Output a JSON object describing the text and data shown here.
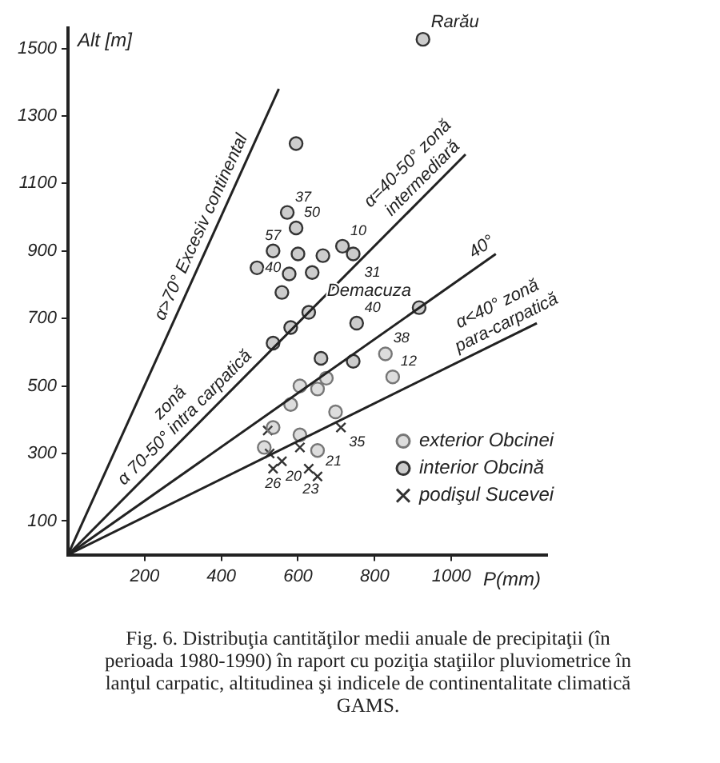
{
  "chart_data": {
    "type": "scatter",
    "title": "Fig. 6. Distribuţia cantităţilor medii anuale de precipitaţii (în perioada 1980-1990) în raport cu poziţia staţiilor pluviometrice în lanţul carpatic, altitudinea şi indicele de continentalitate climatică GAMS.",
    "xlabel": "P(mm)",
    "ylabel": "Alt [m]",
    "xlim": [
      0,
      1250
    ],
    "ylim": [
      0,
      1560
    ],
    "xticks": [
      200,
      400,
      600,
      800,
      1000
    ],
    "yticks": [
      100,
      300,
      500,
      700,
      900,
      1100,
      1300,
      1500
    ],
    "grid": false,
    "legend": "bottom right",
    "series": [
      {
        "type": "line",
        "marker": "none",
        "color": "#222222",
        "x": [
          0,
          550
        ],
        "values": [
          0,
          1380
        ]
      },
      {
        "type": "line",
        "marker": "none",
        "color": "#222222",
        "x": [
          0,
          1037
        ],
        "values": [
          0,
          1186
        ]
      },
      {
        "type": "line",
        "marker": "none",
        "color": "#222222",
        "x": [
          0,
          1116
        ],
        "values": [
          0,
          891
        ]
      },
      {
        "type": "line",
        "marker": "none",
        "color": "#222222",
        "x": [
          0,
          1223
        ],
        "values": [
          0,
          686
        ]
      },
      {
        "name": "exterior Obcinei",
        "marker": "circle",
        "color": "#777777",
        "x": [
          828,
          847,
          674,
          651,
          605,
          581,
          698,
          535,
          605,
          512,
          651
        ],
        "values": [
          595,
          527,
          523,
          491,
          500,
          445,
          423,
          377,
          355,
          318,
          309
        ]
      },
      {
        "name": "interior Obcină",
        "marker": "circle",
        "color": "#333333",
        "x": [
          572,
          595,
          535,
          600,
          665,
          716,
          744,
          577,
          637,
          493,
          558,
          595,
          926,
          916,
          753,
          628,
          581,
          535,
          660,
          744
        ],
        "values": [
          1014,
          968,
          900,
          891,
          886,
          914,
          891,
          832,
          836,
          850,
          777,
          1218,
          1527,
          732,
          686,
          718,
          673,
          627,
          582,
          573
        ]
      },
      {
        "name": "podişul Sucevei",
        "marker": "cross",
        "color": "#333333",
        "x": [
          526,
          558,
          605,
          628,
          651,
          535,
          712,
          521
        ],
        "values": [
          300,
          277,
          318,
          255,
          232,
          255,
          377,
          368
        ]
      }
    ],
    "annotations": [
      {
        "text": "α>70° Excesiv continental",
        "x": 380,
        "y": 953.5
      },
      {
        "text": "zonă\nα 70-50° intra carpatică",
        "x": 330,
        "y": 377.4
      },
      {
        "text": "α=40-50° zonă\nintermediară",
        "x": 950,
        "y": 1086.5
      },
      {
        "text": "40°",
        "x": 1100,
        "y": 878.2
      },
      {
        "text": "α<40° zonă\npara-carpatică",
        "x": 1160,
        "y": 650.6
      },
      {
        "text": "Rarău",
        "x": 926,
        "y": 1527
      },
      {
        "text": "Demacuza",
        "x": 916,
        "y": 732
      },
      {
        "text": "37",
        "x": 572,
        "y": 1014
      },
      {
        "text": "50",
        "x": 595,
        "y": 968
      },
      {
        "text": "57",
        "x": 535,
        "y": 900
      },
      {
        "text": "10",
        "x": 716,
        "y": 914
      },
      {
        "text": "31",
        "x": 744,
        "y": 891
      },
      {
        "text": "40",
        "x": 493,
        "y": 850
      },
      {
        "text": "40",
        "x": 753,
        "y": 686
      },
      {
        "text": "38",
        "x": 828,
        "y": 595
      },
      {
        "text": "12",
        "x": 847,
        "y": 527
      },
      {
        "text": "20",
        "x": 526,
        "y": 300
      },
      {
        "text": "26",
        "x": 535,
        "y": 255
      },
      {
        "text": "23",
        "x": 558,
        "y": 277
      },
      {
        "text": "21",
        "x": 651,
        "y": 232
      },
      {
        "text": "35",
        "x": 712,
        "y": 377
      }
    ]
  }
}
